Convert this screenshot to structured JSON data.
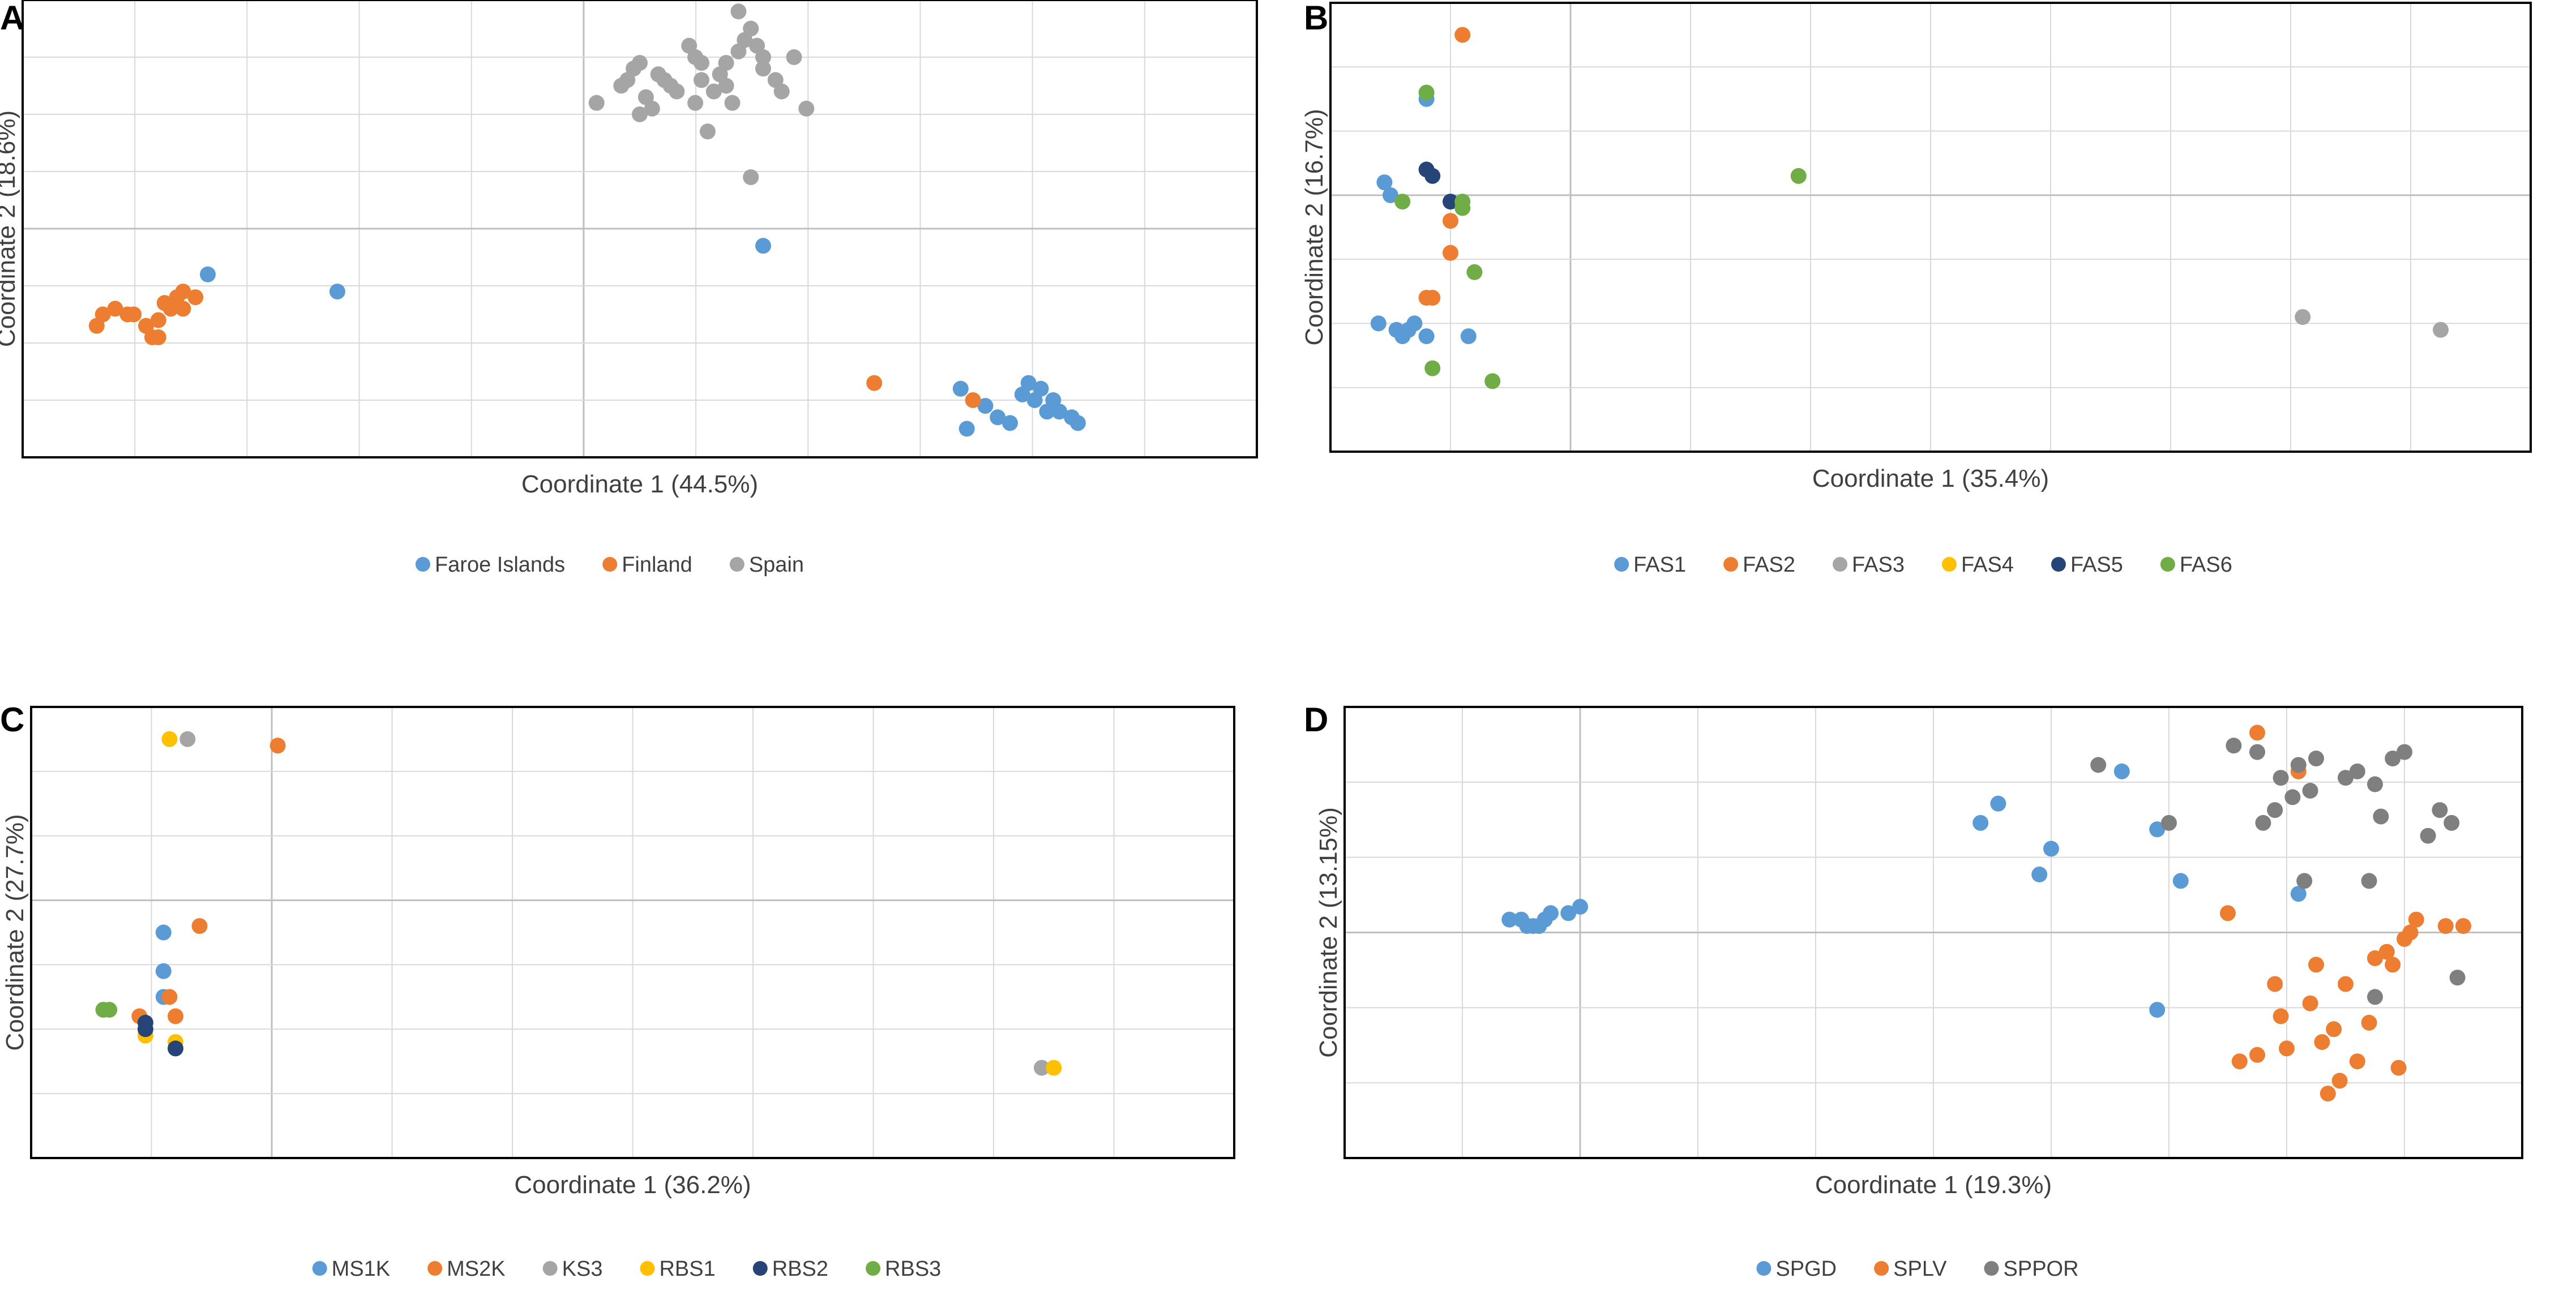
{
  "chart_data": [
    {
      "type": "scatter",
      "panel": "A",
      "xlabel": "Coordinate 1 (44.5%)",
      "ylabel": "Coordinate 2 (18.6%)",
      "xlim": [
        0,
        20
      ],
      "ylim": [
        0,
        8
      ],
      "grid": true,
      "legend": "bottom",
      "series": [
        {
          "name": "Faroe Islands",
          "color": "#5B9BD5",
          "points": [
            [
              3.0,
              3.2
            ],
            [
              5.1,
              2.9
            ],
            [
              12.0,
              3.7
            ],
            [
              15.2,
              1.2
            ],
            [
              15.6,
              0.9
            ],
            [
              15.3,
              0.5
            ],
            [
              15.8,
              0.7
            ],
            [
              16.0,
              0.6
            ],
            [
              16.2,
              1.1
            ],
            [
              16.3,
              1.3
            ],
            [
              16.5,
              1.2
            ],
            [
              16.4,
              1.0
            ],
            [
              16.7,
              1.0
            ],
            [
              16.8,
              0.8
            ],
            [
              17.0,
              0.7
            ],
            [
              17.1,
              0.6
            ],
            [
              16.6,
              0.8
            ]
          ]
        },
        {
          "name": "Finland",
          "color": "#ED7D31",
          "points": [
            [
              1.2,
              2.3
            ],
            [
              1.3,
              2.5
            ],
            [
              1.5,
              2.6
            ],
            [
              1.7,
              2.5
            ],
            [
              1.8,
              2.5
            ],
            [
              2.0,
              2.3
            ],
            [
              2.1,
              2.1
            ],
            [
              2.2,
              2.1
            ],
            [
              2.3,
              2.7
            ],
            [
              2.4,
              2.6
            ],
            [
              2.5,
              2.8
            ],
            [
              2.6,
              2.9
            ],
            [
              2.8,
              2.8
            ],
            [
              2.2,
              2.4
            ],
            [
              13.8,
              1.3
            ],
            [
              15.4,
              1.0
            ],
            [
              2.6,
              2.6
            ]
          ]
        },
        {
          "name": "Spain",
          "color": "#A5A5A5",
          "points": [
            [
              9.3,
              6.2
            ],
            [
              9.7,
              6.5
            ],
            [
              9.8,
              6.6
            ],
            [
              9.9,
              6.8
            ],
            [
              10.0,
              6.9
            ],
            [
              10.1,
              6.3
            ],
            [
              10.2,
              6.1
            ],
            [
              10.4,
              6.6
            ],
            [
              10.6,
              6.4
            ],
            [
              10.8,
              7.2
            ],
            [
              10.9,
              7.0
            ],
            [
              11.0,
              6.9
            ],
            [
              11.2,
              6.4
            ],
            [
              11.3,
              6.7
            ],
            [
              11.4,
              6.9
            ],
            [
              11.6,
              7.1
            ],
            [
              11.7,
              7.3
            ],
            [
              11.8,
              7.5
            ],
            [
              11.9,
              7.2
            ],
            [
              12.0,
              6.8
            ],
            [
              12.2,
              6.6
            ],
            [
              12.3,
              6.4
            ],
            [
              12.5,
              7.0
            ],
            [
              12.7,
              6.1
            ],
            [
              11.6,
              7.8
            ],
            [
              11.1,
              5.7
            ],
            [
              11.8,
              4.9
            ],
            [
              11.4,
              6.5
            ],
            [
              10.5,
              6.5
            ],
            [
              10.3,
              6.7
            ],
            [
              11.0,
              6.6
            ],
            [
              12.0,
              7.0
            ],
            [
              11.5,
              6.2
            ],
            [
              10.9,
              6.2
            ],
            [
              10.0,
              6.0
            ]
          ]
        }
      ]
    },
    {
      "type": "scatter",
      "panel": "B",
      "xlabel": "Coordinate 1 (35.4%)",
      "ylabel": "Coordinate 2 (16.7%)",
      "xlim": [
        0,
        20
      ],
      "ylim": [
        0,
        7
      ],
      "grid": true,
      "legend": "bottom",
      "series": [
        {
          "name": "FAS1",
          "color": "#5B9BD5",
          "points": [
            [
              1.6,
              5.5
            ],
            [
              0.9,
              4.2
            ],
            [
              1.0,
              4.0
            ],
            [
              0.8,
              2.0
            ],
            [
              1.1,
              1.9
            ],
            [
              1.2,
              1.8
            ],
            [
              1.3,
              1.9
            ],
            [
              1.6,
              1.8
            ],
            [
              2.3,
              1.8
            ],
            [
              1.4,
              2.0
            ]
          ]
        },
        {
          "name": "FAS2",
          "color": "#ED7D31",
          "points": [
            [
              2.2,
              6.5
            ],
            [
              2.0,
              3.6
            ],
            [
              2.0,
              3.1
            ],
            [
              1.6,
              2.4
            ],
            [
              1.7,
              2.4
            ]
          ]
        },
        {
          "name": "FAS3",
          "color": "#A5A5A5",
          "points": [
            [
              16.2,
              2.1
            ],
            [
              18.5,
              1.9
            ]
          ]
        },
        {
          "name": "FAS4",
          "color": "#FFC000",
          "points": []
        },
        {
          "name": "FAS5",
          "color": "#264478",
          "points": [
            [
              1.6,
              4.4
            ],
            [
              1.7,
              4.3
            ],
            [
              2.0,
              3.9
            ]
          ]
        },
        {
          "name": "FAS6",
          "color": "#70AD47",
          "points": [
            [
              1.6,
              5.6
            ],
            [
              1.2,
              3.9
            ],
            [
              2.2,
              3.8
            ],
            [
              2.2,
              3.9
            ],
            [
              2.4,
              2.8
            ],
            [
              1.7,
              1.3
            ],
            [
              7.8,
              4.3
            ],
            [
              2.7,
              1.1
            ]
          ]
        }
      ]
    },
    {
      "type": "scatter",
      "panel": "C",
      "xlabel": "Coordinate 1 (36.2%)",
      "ylabel": "Coordinate 2 (27.7%)",
      "xlim": [
        0,
        20
      ],
      "ylim": [
        0,
        7
      ],
      "grid": true,
      "legend": "bottom",
      "series": [
        {
          "name": "MS1K",
          "color": "#5B9BD5",
          "points": [
            [
              2.2,
              3.5
            ],
            [
              2.2,
              2.9
            ],
            [
              2.2,
              2.5
            ]
          ]
        },
        {
          "name": "MS2K",
          "color": "#ED7D31",
          "points": [
            [
              4.1,
              6.4
            ],
            [
              2.8,
              3.6
            ],
            [
              1.8,
              2.2
            ],
            [
              2.4,
              2.2
            ],
            [
              2.3,
              2.5
            ]
          ]
        },
        {
          "name": "KS3",
          "color": "#A5A5A5",
          "points": [
            [
              2.6,
              6.5
            ],
            [
              16.8,
              1.4
            ]
          ]
        },
        {
          "name": "RBS1",
          "color": "#FFC000",
          "points": [
            [
              2.3,
              6.5
            ],
            [
              1.9,
              1.9
            ],
            [
              2.4,
              1.8
            ],
            [
              17.0,
              1.4
            ]
          ]
        },
        {
          "name": "RBS2",
          "color": "#264478",
          "points": [
            [
              1.9,
              2.1
            ],
            [
              1.9,
              2.0
            ],
            [
              2.4,
              1.7
            ]
          ]
        },
        {
          "name": "RBS3",
          "color": "#70AD47",
          "points": [
            [
              1.2,
              2.3
            ],
            [
              1.3,
              2.3
            ]
          ]
        }
      ]
    },
    {
      "type": "scatter",
      "panel": "D",
      "xlabel": "Coordinate 1 (19.3%)",
      "ylabel": "Coordinate 2 (13.15%)",
      "xlim": [
        0,
        20
      ],
      "ylim": [
        0,
        7
      ],
      "grid": true,
      "legend": "bottom",
      "series": [
        {
          "name": "SPGD",
          "color": "#5B9BD5",
          "points": [
            [
              10.8,
              5.2
            ],
            [
              11.1,
              5.5
            ],
            [
              12.0,
              4.8
            ],
            [
              13.2,
              6.0
            ],
            [
              13.8,
              5.1
            ],
            [
              14.2,
              4.3
            ],
            [
              2.8,
              3.7
            ],
            [
              3.0,
              3.7
            ],
            [
              3.1,
              3.6
            ],
            [
              3.2,
              3.6
            ],
            [
              3.3,
              3.6
            ],
            [
              3.4,
              3.7
            ],
            [
              3.5,
              3.8
            ],
            [
              3.8,
              3.8
            ],
            [
              4.0,
              3.9
            ],
            [
              16.2,
              4.1
            ],
            [
              11.8,
              4.4
            ],
            [
              13.8,
              2.3
            ]
          ]
        },
        {
          "name": "SPLV",
          "color": "#ED7D31",
          "points": [
            [
              15.5,
              6.6
            ],
            [
              16.2,
              6.0
            ],
            [
              18.2,
              3.7
            ],
            [
              19.0,
              3.6
            ],
            [
              18.7,
              3.6
            ],
            [
              18.1,
              3.5
            ],
            [
              18.0,
              3.4
            ],
            [
              17.7,
              3.2
            ],
            [
              17.5,
              3.1
            ],
            [
              16.5,
              3.0
            ],
            [
              15.8,
              2.7
            ],
            [
              17.0,
              2.7
            ],
            [
              16.4,
              2.4
            ],
            [
              15.9,
              2.2
            ],
            [
              17.4,
              2.1
            ],
            [
              16.8,
              2.0
            ],
            [
              16.6,
              1.8
            ],
            [
              15.5,
              1.6
            ],
            [
              16.0,
              1.7
            ],
            [
              17.2,
              1.5
            ],
            [
              16.9,
              1.2
            ],
            [
              16.7,
              1.0
            ],
            [
              15.2,
              1.5
            ],
            [
              17.9,
              1.4
            ],
            [
              17.8,
              3.0
            ],
            [
              15.0,
              3.8
            ]
          ]
        },
        {
          "name": "SPPOR",
          "color": "#7F7F7F",
          "points": [
            [
              12.8,
              6.1
            ],
            [
              15.1,
              6.4
            ],
            [
              15.5,
              6.3
            ],
            [
              15.9,
              5.9
            ],
            [
              16.2,
              6.1
            ],
            [
              16.5,
              6.2
            ],
            [
              17.2,
              6.0
            ],
            [
              17.8,
              6.2
            ],
            [
              18.0,
              6.3
            ],
            [
              17.0,
              5.9
            ],
            [
              17.5,
              5.8
            ],
            [
              16.4,
              5.7
            ],
            [
              16.1,
              5.6
            ],
            [
              15.8,
              5.4
            ],
            [
              15.6,
              5.2
            ],
            [
              14.0,
              5.2
            ],
            [
              17.6,
              5.3
            ],
            [
              18.6,
              5.4
            ],
            [
              18.4,
              5.0
            ],
            [
              17.4,
              4.3
            ],
            [
              16.3,
              4.3
            ],
            [
              18.9,
              2.8
            ],
            [
              17.5,
              2.5
            ],
            [
              18.8,
              5.2
            ]
          ]
        }
      ]
    }
  ]
}
